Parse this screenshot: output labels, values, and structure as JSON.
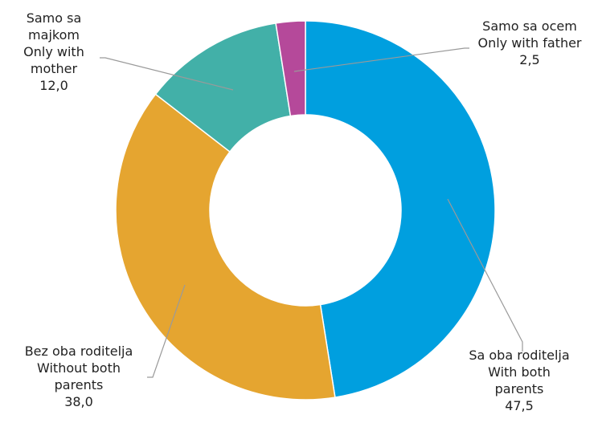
{
  "chart_data": {
    "type": "donut",
    "title": "",
    "categories": [
      "Sa oba roditelja With both parents",
      "Bez oba roditelja Without both parents",
      "Samo sa majkom Only with mother",
      "Samo sa ocem Only with father"
    ],
    "values": [
      47.5,
      38.0,
      12.0,
      2.5
    ],
    "slices": [
      {
        "name_lines": [
          "Sa oba roditelja",
          "With both",
          "parents"
        ],
        "value": 47.5,
        "value_label": "47,5",
        "color": "#009FDF"
      },
      {
        "name_lines": [
          "Bez oba roditelja",
          "Without both",
          "parents"
        ],
        "value": 38.0,
        "value_label": "38,0",
        "color": "#E5A530"
      },
      {
        "name_lines": [
          "Samo sa",
          "majkom",
          "Only with",
          "mother"
        ],
        "value": 12.0,
        "value_label": "12,0",
        "color": "#42B0A8"
      },
      {
        "name_lines": [
          "Samo sa ocem",
          "Only with father"
        ],
        "value": 2.5,
        "value_label": "2,5",
        "color": "#B5499A"
      }
    ],
    "start_angle_deg": 0,
    "direction": "clockwise",
    "legend": "none"
  }
}
